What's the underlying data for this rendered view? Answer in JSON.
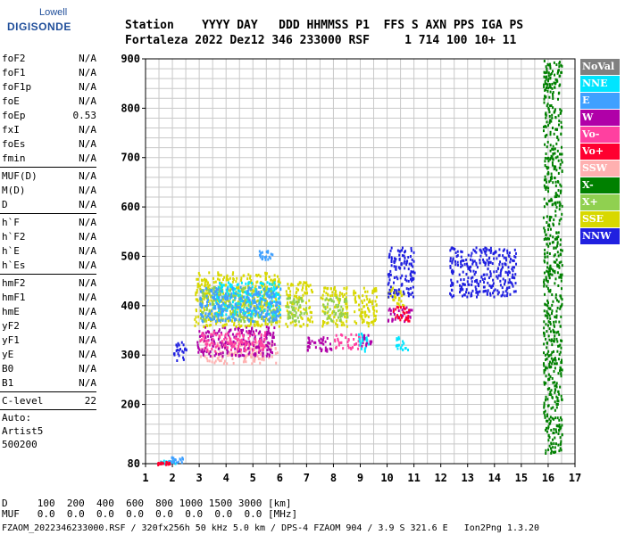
{
  "logo": {
    "line1": "Lowell",
    "line2": "DIGISONDE"
  },
  "header": {
    "labels": "Station    YYYY DAY   DDD HHMMSS P1  FFS S AXN PPS IGA PS",
    "values": "Fortaleza 2022 Dez12 346 233000 RSF     1 714 100 10+ 11"
  },
  "params": {
    "group1": [
      {
        "label": "foF2",
        "value": "N/A"
      },
      {
        "label": "foF1",
        "value": "N/A"
      },
      {
        "label": "foF1p",
        "value": "N/A"
      },
      {
        "label": "foE",
        "value": "N/A"
      },
      {
        "label": "foEp",
        "value": "0.53"
      },
      {
        "label": "fxI",
        "value": "N/A"
      },
      {
        "label": "foEs",
        "value": "N/A"
      },
      {
        "label": "fmin",
        "value": "N/A"
      }
    ],
    "group2": [
      {
        "label": "MUF(D)",
        "value": "N/A"
      },
      {
        "label": "M(D)",
        "value": "N/A"
      },
      {
        "label": "D",
        "value": "N/A"
      }
    ],
    "group3": [
      {
        "label": "h`F",
        "value": "N/A"
      },
      {
        "label": "h`F2",
        "value": "N/A"
      },
      {
        "label": "h`E",
        "value": "N/A"
      },
      {
        "label": "h`Es",
        "value": "N/A"
      }
    ],
    "group4": [
      {
        "label": "hmF2",
        "value": "N/A"
      },
      {
        "label": "hmF1",
        "value": "N/A"
      },
      {
        "label": "hmE",
        "value": "N/A"
      },
      {
        "label": "yF2",
        "value": "N/A"
      },
      {
        "label": "yF1",
        "value": "N/A"
      },
      {
        "label": "yE",
        "value": "N/A"
      },
      {
        "label": "B0",
        "value": "N/A"
      },
      {
        "label": "B1",
        "value": "N/A"
      }
    ],
    "clevel": {
      "label": "C-level",
      "value": "22"
    },
    "auto": [
      "Auto:",
      "Artist5",
      "500200"
    ]
  },
  "legend": [
    {
      "label": "NoVal",
      "color": "#808080"
    },
    {
      "label": "NNE",
      "color": "#00e5ff"
    },
    {
      "label": "E",
      "color": "#3fa0ff"
    },
    {
      "label": "W",
      "color": "#b000a8"
    },
    {
      "label": "Vo-",
      "color": "#ff40a0"
    },
    {
      "label": "Vo+",
      "color": "#ff0030"
    },
    {
      "label": "SSW",
      "color": "#ffb0b0"
    },
    {
      "label": "X-",
      "color": "#008000"
    },
    {
      "label": "X+",
      "color": "#90d050"
    },
    {
      "label": "SSE",
      "color": "#d8d800"
    },
    {
      "label": "NNW",
      "color": "#2020e0"
    }
  ],
  "bottom": {
    "dline": "D     100  200  400  600  800 1000 1500 3000 [km]",
    "mufline": "MUF   0.0  0.0  0.0  0.0  0.0  0.0  0.0  0.0 [MHz]",
    "footer": "FZAOM_2022346233000.RSF / 320fx256h 50 kHz 5.0 km / DPS-4 FZAOM 904 / 3.9 S 321.6 E   Ion2Png 1.3.20"
  },
  "chart_data": {
    "type": "scatter",
    "title": "",
    "xlabel": "",
    "ylabel": "",
    "xlim": [
      1,
      17
    ],
    "ylim": [
      80,
      900
    ],
    "x_ticks": [
      1,
      2,
      3,
      4,
      5,
      6,
      7,
      8,
      9,
      10,
      11,
      12,
      13,
      14,
      15,
      16,
      17
    ],
    "y_ticks": [
      80,
      200,
      300,
      400,
      500,
      600,
      700,
      800,
      900
    ],
    "grid": true,
    "series": [
      {
        "name": "SSW",
        "color": "#ffb0b0",
        "clusters": [
          [
            3.0,
            5.9,
            285,
            330
          ]
        ]
      },
      {
        "name": "W",
        "color": "#b000a8",
        "clusters": [
          [
            2.9,
            5.8,
            300,
            360
          ],
          [
            7.0,
            8.0,
            310,
            340
          ],
          [
            9.0,
            9.4,
            320,
            345
          ],
          [
            10.0,
            10.9,
            370,
            400
          ]
        ]
      },
      {
        "name": "Vo-",
        "color": "#ff40a0",
        "clusters": [
          [
            3.0,
            5.5,
            310,
            350
          ],
          [
            8.0,
            9.0,
            315,
            345
          ]
        ]
      },
      {
        "name": "SSE",
        "color": "#d8d800",
        "clusters": [
          [
            2.8,
            6.0,
            360,
            470
          ],
          [
            6.2,
            7.2,
            360,
            450
          ],
          [
            7.5,
            8.5,
            360,
            440
          ],
          [
            8.7,
            9.6,
            360,
            440
          ],
          [
            10.0,
            10.6,
            400,
            440
          ]
        ]
      },
      {
        "name": "X+",
        "color": "#90d050",
        "clusters": [
          [
            3.0,
            5.8,
            370,
            440
          ],
          [
            6.2,
            7.0,
            370,
            420
          ],
          [
            7.6,
            8.5,
            370,
            420
          ]
        ]
      },
      {
        "name": "NNE",
        "color": "#00e5ff",
        "clusters": [
          [
            3.5,
            6.0,
            380,
            450
          ],
          [
            8.9,
            9.3,
            310,
            350
          ],
          [
            10.3,
            10.8,
            310,
            340
          ],
          [
            1.5,
            2.1,
            82,
            88
          ]
        ]
      },
      {
        "name": "E",
        "color": "#3fa0ff",
        "clusters": [
          [
            3.0,
            6.0,
            370,
            440
          ],
          [
            5.2,
            5.8,
            490,
            515
          ],
          [
            1.8,
            2.4,
            84,
            95
          ]
        ]
      },
      {
        "name": "NNW",
        "color": "#2020e0",
        "clusters": [
          [
            2.0,
            2.5,
            290,
            330
          ],
          [
            10.0,
            11.0,
            420,
            520
          ],
          [
            12.3,
            14.8,
            420,
            520
          ]
        ]
      },
      {
        "name": "Vo+",
        "color": "#ff0030",
        "clusters": [
          [
            10.1,
            10.8,
            370,
            400
          ],
          [
            1.4,
            1.9,
            80,
            86
          ]
        ]
      },
      {
        "name": "X-",
        "color": "#008000",
        "clusters": [
          [
            15.8,
            16.5,
            100,
            900
          ]
        ]
      }
    ]
  }
}
